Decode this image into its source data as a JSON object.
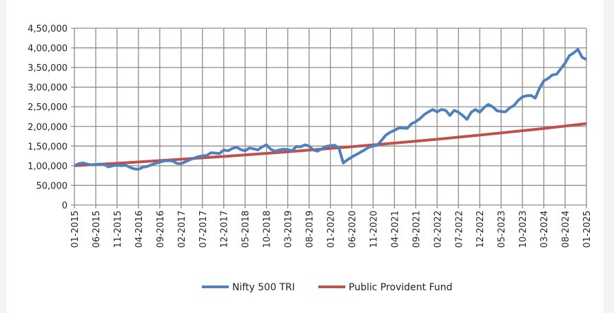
{
  "chart_data": {
    "type": "line",
    "title": "",
    "xlabel": "",
    "ylabel": "",
    "ylim": [
      0,
      450000
    ],
    "yticks": [
      "0",
      "50,000",
      "1,00,000",
      "1,50,000",
      "2,00,000",
      "2,50,000",
      "3,00,000",
      "3,50,000",
      "4,00,000",
      "4,50,000"
    ],
    "xtick_labels": [
      "01-2015",
      "06-2015",
      "11-2015",
      "04-2016",
      "09-2016",
      "02-2017",
      "07-2017",
      "12-2017",
      "05-2018",
      "10-2018",
      "03-2019",
      "08-2019",
      "01-2020",
      "06-2020",
      "11-2020",
      "04-2021",
      "09-2021",
      "02-2022",
      "07-2022",
      "12-2022",
      "05-2023",
      "10-2023",
      "03-2024",
      "08-2024",
      "01-2025"
    ],
    "x_range": [
      "01-2015",
      "01-2025"
    ],
    "x_step": "monthly",
    "grid": true,
    "legend_position": "bottom",
    "series": [
      {
        "name": "Nifty 500 TRI",
        "color": "#4F81BD",
        "values": [
          100000,
          105000,
          107000,
          104000,
          102000,
          103000,
          104000,
          103000,
          97000,
          100000,
          101000,
          100000,
          101000,
          96000,
          92000,
          91000,
          96000,
          98000,
          102000,
          106000,
          109000,
          112000,
          113000,
          112000,
          106000,
          105000,
          110000,
          115000,
          119000,
          123000,
          125000,
          126000,
          133000,
          132000,
          131000,
          140000,
          138000,
          144000,
          147000,
          141000,
          138000,
          145000,
          143000,
          140000,
          148000,
          153000,
          142000,
          137000,
          140000,
          142000,
          141000,
          138000,
          149000,
          148000,
          153000,
          150000,
          140000,
          137000,
          143000,
          149000,
          151000,
          152000,
          145000,
          107000,
          115000,
          122000,
          128000,
          134000,
          140000,
          147000,
          150000,
          152000,
          165000,
          178000,
          185000,
          190000,
          196000,
          196000,
          195000,
          207000,
          212000,
          220000,
          230000,
          237000,
          243000,
          237000,
          243000,
          241000,
          228000,
          241000,
          236000,
          228000,
          218000,
          236000,
          243000,
          236000,
          248000,
          256000,
          250000,
          240000,
          238000,
          237000,
          247000,
          253000,
          266000,
          275000,
          278000,
          279000,
          272000,
          297000,
          316000,
          322000,
          331000,
          333000,
          347000,
          361000,
          380000,
          387000,
          396000,
          376000,
          370000
        ]
      },
      {
        "name": "Public Provident Fund",
        "color": "#C0504D",
        "points": [
          {
            "x": "01-2015",
            "y": 100000
          },
          {
            "x": "01-2016",
            "y": 107550
          },
          {
            "x": "01-2017",
            "y": 115660
          },
          {
            "x": "01-2018",
            "y": 124390
          },
          {
            "x": "01-2019",
            "y": 133770
          },
          {
            "x": "01-2020",
            "y": 143860
          },
          {
            "x": "01-2021",
            "y": 154720
          },
          {
            "x": "01-2022",
            "y": 166390
          },
          {
            "x": "01-2023",
            "y": 178950
          },
          {
            "x": "01-2024",
            "y": 192450
          },
          {
            "x": "01-2025",
            "y": 206970
          }
        ]
      }
    ]
  }
}
